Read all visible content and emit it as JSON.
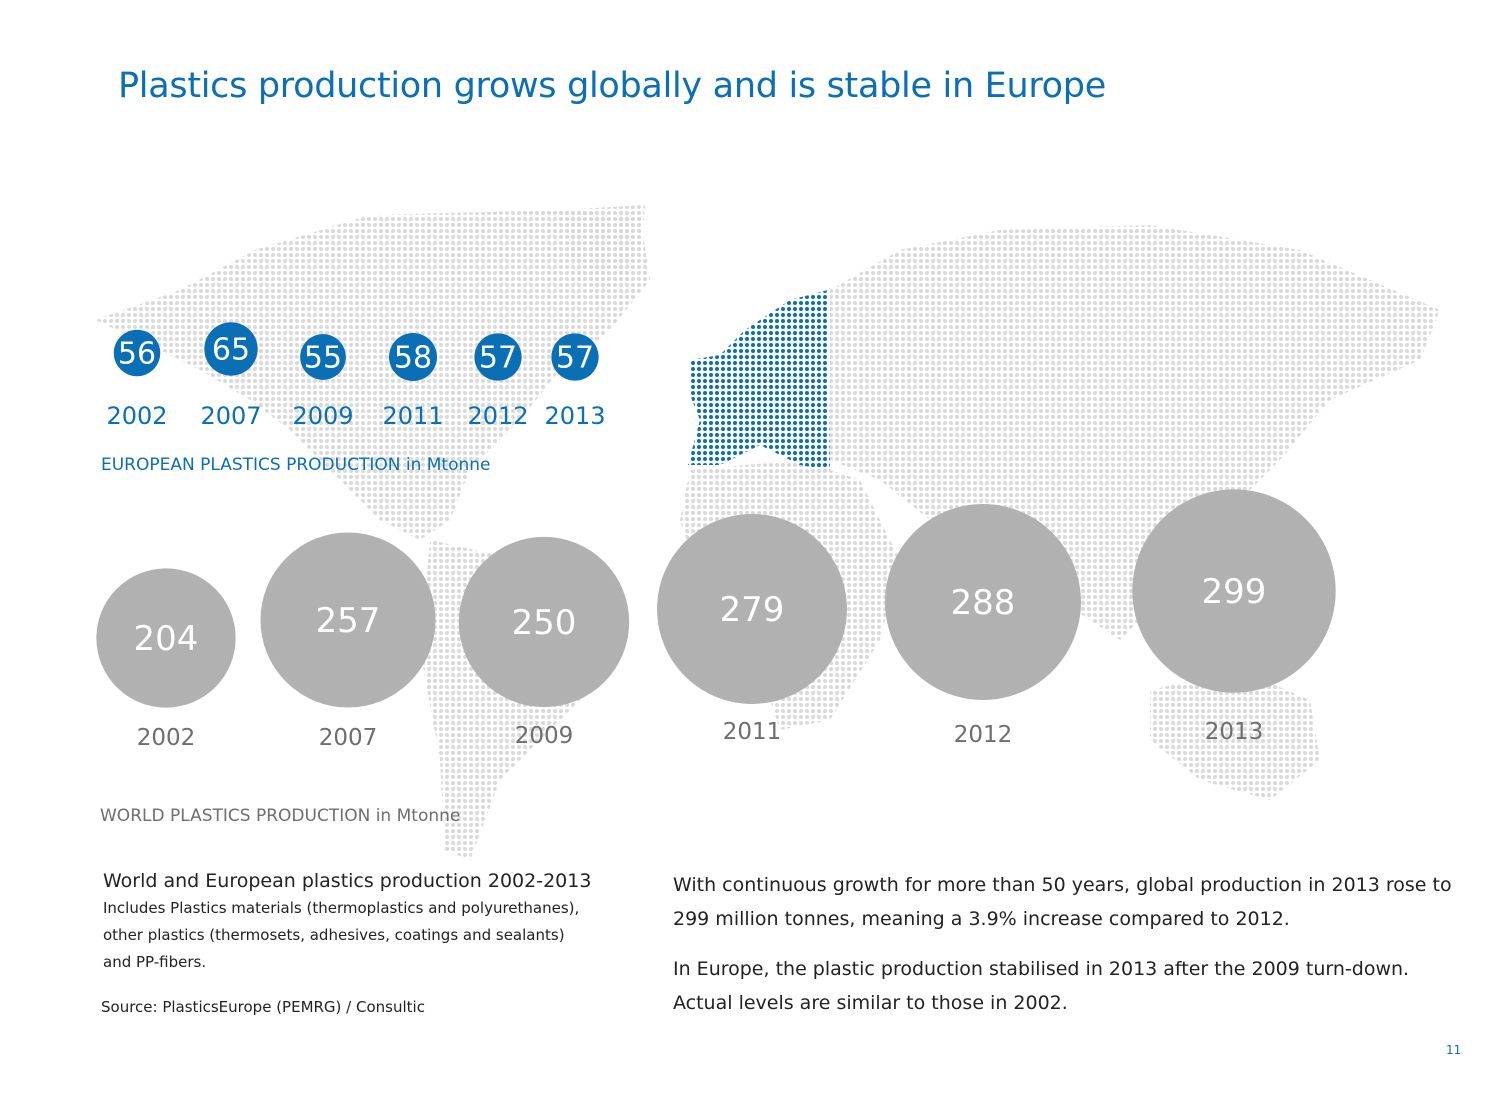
{
  "title": "Plastics production grows globally and is stable in Europe",
  "colors": {
    "europe": "#0a6fb5",
    "world": "#b1b1b2",
    "map_dots": "#d9d9d9",
    "title": "#0a6fb5"
  },
  "chart_data": [
    {
      "type": "bubble",
      "label": "EUROPEAN PLASTICS PRODUCTION in Mtonne",
      "categories": [
        "2002",
        "2007",
        "2009",
        "2011",
        "2012",
        "2013"
      ],
      "values": [
        56,
        65,
        55,
        58,
        57,
        57
      ],
      "unit": "Mtonne",
      "color": "#0a6fb5"
    },
    {
      "type": "bubble",
      "label": "WORLD PLASTICS PRODUCTION in Mtonne",
      "categories": [
        "2002",
        "2007",
        "2009",
        "2011",
        "2012",
        "2013"
      ],
      "values": [
        204,
        257,
        250,
        279,
        288,
        299
      ],
      "unit": "Mtonne",
      "color": "#b1b1b2"
    }
  ],
  "caption": {
    "title": "World and European  plastics production 2002-2013",
    "lines": [
      "Includes Plastics materials (thermoplastics and polyurethanes),",
      "other plastics (thermosets, adhesives, coatings and sealants)",
      "and PP-fibers."
    ],
    "source": "Source: PlasticsEurope (PEMRG) / Consultic"
  },
  "body": [
    "With continuous growth for more than 50 years, global production in 2013 rose to 299 million tonnes, meaning a 3.9% increase compared to 2012.",
    "In Europe, the plastic production stabilised in 2013 after the 2009 turn-down. Actual levels are similar to those in 2002."
  ],
  "page_number": "11"
}
